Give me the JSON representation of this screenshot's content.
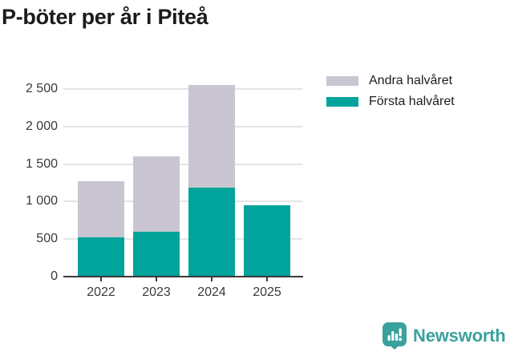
{
  "chart_data": {
    "type": "bar",
    "stacked": true,
    "title": "P-böter per år i Piteå",
    "categories": [
      "2022",
      "2023",
      "2024",
      "2025"
    ],
    "series": [
      {
        "name": "Första halvåret",
        "color": "#00a49b",
        "values": [
          520,
          600,
          1190,
          950
        ]
      },
      {
        "name": "Andra halvåret",
        "color": "#c9c6d2",
        "values": [
          750,
          1000,
          1360,
          0
        ]
      }
    ],
    "stack_totals": [
      1270,
      1600,
      2550,
      950
    ],
    "ylim": [
      0,
      2660
    ],
    "yticks": [
      0,
      500,
      1000,
      1500,
      2000,
      2500
    ],
    "ytick_labels": [
      "0",
      "500",
      "1 000",
      "1 500",
      "2 000",
      "2 500"
    ],
    "xlabel": "",
    "ylabel": "",
    "grid": true,
    "legend": [
      "Andra halvåret",
      "Första halvåret"
    ],
    "legend_position": "top-right",
    "axis_color": "#3a3a3a",
    "grid_color": "#e4e4e4"
  },
  "footer": {
    "brand": "Newsworthy",
    "brand_color": "#3ba19c"
  }
}
